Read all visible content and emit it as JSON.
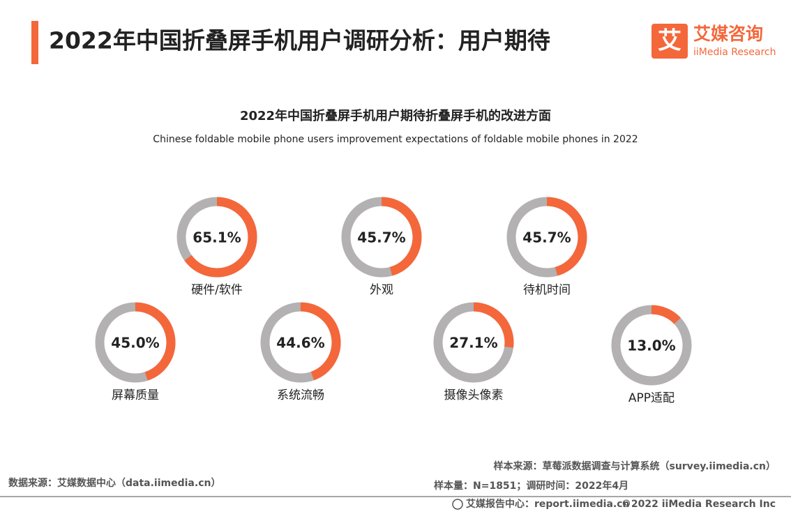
{
  "header": {
    "title": "2022年中国折叠屏手机用户调研分析：用户期待"
  },
  "logo": {
    "mark": "艾",
    "name": "艾媒咨询",
    "name_en": "iiMedia Research"
  },
  "chart_data": {
    "type": "donut",
    "title": "2022年中国折叠屏手机用户期待折叠屏手机的改进方面",
    "subtitle": "Chinese foldable mobile phone users improvement expectations of foldable mobile phones in 2022",
    "categories": [
      "硬件/软件",
      "外观",
      "待机时间",
      "屏幕质量",
      "系统流畅",
      "摄像头像素",
      "APP适配"
    ],
    "values": [
      65.1,
      45.7,
      45.7,
      45.0,
      44.6,
      27.1,
      13.0
    ],
    "value_labels": [
      "65.1%",
      "45.7%",
      "45.7%",
      "45.0%",
      "44.6%",
      "27.1%",
      "13.0%"
    ],
    "color": "#f4673a",
    "track_color": "#b3b1b1"
  },
  "footer": {
    "source": "数据来源：艾媒数据中心（data.iimedia.cn）",
    "sample_source": "样本来源：草莓派数据调查与计算系统（survey.iimedia.cn）",
    "sample_size": "样本量：N=1851；调研时间：2022年4月",
    "report": "艾媒报告中心：report.iimedia.cn",
    "copyright": "©2022 iiMedia Research Inc"
  }
}
